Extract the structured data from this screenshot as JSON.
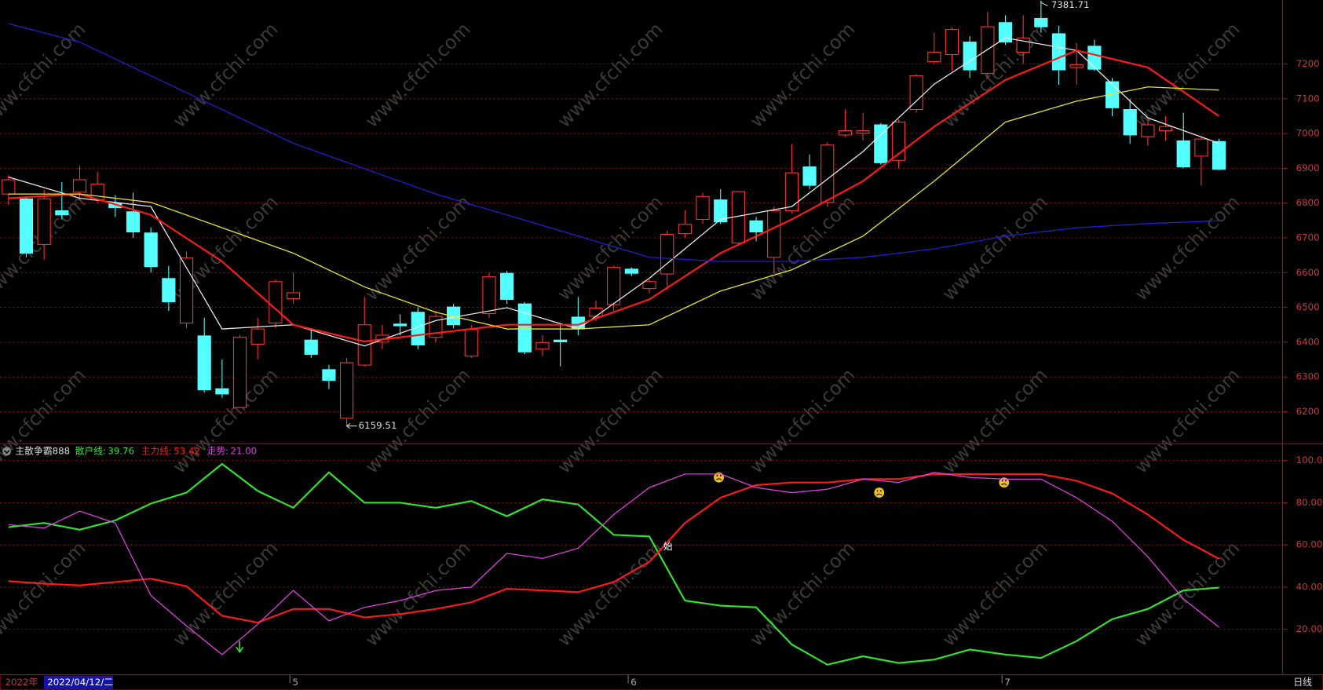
{
  "chart_data": [
    {
      "type": "candlestick",
      "categories": [
        null,
        null,
        null,
        null,
        null,
        null,
        null,
        null,
        null,
        null,
        null,
        null,
        null,
        null,
        null,
        null,
        "5",
        null,
        null,
        null,
        null,
        null,
        null,
        null,
        null,
        null,
        null,
        null,
        null,
        null,
        null,
        null,
        null,
        null,
        null,
        "6",
        null,
        null,
        null,
        null,
        null,
        null,
        null,
        null,
        null,
        null,
        null,
        null,
        null,
        null,
        null,
        null,
        null,
        null,
        null,
        null,
        "7",
        null,
        null,
        null,
        null,
        null,
        null,
        null,
        null,
        null,
        null,
        null,
        null
      ],
      "open": [
        6826,
        6812,
        6681,
        6778,
        6831,
        6809,
        6800,
        6775,
        6714,
        6583,
        6455,
        6418,
        6266,
        6212,
        6394,
        6455,
        6525,
        6406,
        6321,
        6181,
        6334,
        6400,
        6452,
        6486,
        6414,
        6501,
        6360,
        6482,
        6598,
        6510,
        6380,
        6406,
        6472,
        6474,
        6508,
        6610,
        6554,
        6596,
        6712,
        6753,
        6809,
        6685,
        6749,
        6644,
        6778,
        6904,
        6802,
        6996,
        7001,
        7025,
        6923,
        7069,
        7207,
        7227,
        7263,
        7173,
        7319,
        7234,
        7331,
        7287,
        7190,
        7251,
        7149,
        7069,
        6991,
        7008,
        6979,
        6935,
        6977
      ],
      "high": [
        6880,
        6815,
        6838,
        6860,
        6908,
        6890,
        6823,
        6830,
        6730,
        6620,
        6660,
        6470,
        6350,
        6420,
        6470,
        6580,
        6600,
        6440,
        6335,
        6355,
        6530,
        6450,
        6480,
        6500,
        6490,
        6510,
        6450,
        6600,
        6605,
        6515,
        6420,
        6450,
        6530,
        6520,
        6620,
        6615,
        6580,
        6720,
        6780,
        6830,
        6840,
        6835,
        6760,
        6790,
        6970,
        6940,
        6975,
        7070,
        7060,
        7030,
        7040,
        7170,
        7290,
        7305,
        7280,
        7350,
        7340,
        7340,
        7381.71,
        7310,
        7260,
        7270,
        7160,
        7100,
        7040,
        7050,
        7060,
        6990,
        6985
      ],
      "low": [
        6795,
        6644,
        6637,
        6753,
        6810,
        6800,
        6760,
        6700,
        6600,
        6490,
        6440,
        6255,
        6240,
        6210,
        6350,
        6440,
        6510,
        6355,
        6265,
        6159.51,
        6330,
        6380,
        6420,
        6380,
        6400,
        6440,
        6355,
        6470,
        6510,
        6365,
        6360,
        6330,
        6420,
        6460,
        6490,
        6590,
        6540,
        6550,
        6700,
        6740,
        6740,
        6680,
        6690,
        6600,
        6770,
        6840,
        6790,
        6990,
        6980,
        6910,
        6900,
        7060,
        7200,
        7180,
        7160,
        7160,
        7255,
        7200,
        7290,
        7140,
        7140,
        7180,
        7050,
        6970,
        6965,
        6980,
        6900,
        6850,
        6895
      ],
      "close": [
        6867,
        6656,
        6812,
        6766,
        6867,
        6855,
        6787,
        6717,
        6617,
        6516,
        6642,
        6263,
        6251,
        6414,
        6438,
        6574,
        6542,
        6365,
        6290,
        6341,
        6450,
        6420,
        6447,
        6392,
        6474,
        6450,
        6436,
        6588,
        6523,
        6372,
        6399,
        6401,
        6438,
        6498,
        6615,
        6598,
        6574,
        6710,
        6739,
        6819,
        6746,
        6833,
        6717,
        6778,
        6887,
        6851,
        6967,
        7008,
        7008,
        6916,
        7033,
        7166,
        7234,
        7299,
        7183,
        7307,
        7263,
        7275,
        7307,
        7183,
        7198,
        7185,
        7074,
        6996,
        7025,
        7020,
        6904,
        6984,
        6897
      ],
      "up_color": "#ff3232",
      "down_color": "#54ffff",
      "series": [
        {
          "color": "#e8e8e8",
          "x": [
            0,
            4,
            8,
            12,
            16,
            20,
            24,
            28,
            32,
            36,
            40,
            44,
            48,
            52,
            56,
            60,
            64,
            68
          ],
          "values": [
            6875,
            6814,
            6790,
            6438,
            6450,
            6389,
            6462,
            6499,
            6438,
            6584,
            6753,
            6790,
            6948,
            7142,
            7275,
            7239,
            7045,
            6972
          ]
        },
        {
          "color": "#ff1a1a",
          "x": [
            0,
            4,
            8,
            12,
            16,
            20,
            24,
            28,
            32,
            36,
            40,
            44,
            48,
            52,
            56,
            60,
            64,
            68
          ],
          "values": [
            6814,
            6826,
            6766,
            6632,
            6450,
            6402,
            6426,
            6450,
            6450,
            6523,
            6656,
            6753,
            6863,
            7020,
            7154,
            7239,
            7190,
            7050
          ]
        },
        {
          "color": "#e6e620",
          "x": [
            0,
            4,
            8,
            12,
            16,
            20,
            24,
            28,
            32,
            36,
            40,
            44,
            48,
            52,
            56,
            60,
            64,
            68
          ],
          "values": [
            6826,
            6826,
            6802,
            6729,
            6656,
            6559,
            6486,
            6438,
            6438,
            6450,
            6547,
            6608,
            6705,
            6863,
            7033,
            7093,
            7134,
            7125
          ]
        },
        {
          "color": "#2020d0",
          "x": [
            0,
            4,
            8,
            12,
            16,
            20,
            24,
            28,
            32,
            36,
            40,
            44,
            48,
            52,
            56,
            60,
            64,
            68
          ],
          "values": [
            7316,
            7263,
            7166,
            7069,
            6972,
            6899,
            6826,
            6766,
            6705,
            6644,
            6632,
            6632,
            6644,
            6668,
            6705,
            6729,
            6741,
            6749
          ]
        }
      ],
      "ylim": [
        6108,
        7384
      ],
      "yticks": [
        6200,
        6300,
        6400,
        6500,
        6600,
        6700,
        6800,
        6900,
        7000,
        7100,
        7200
      ],
      "grid": true
    },
    {
      "type": "line",
      "title": "主散争霸888",
      "x": [
        0,
        2,
        4,
        6,
        8,
        10,
        12,
        14,
        16,
        18,
        20,
        22,
        24,
        26,
        28,
        30,
        32,
        34,
        36,
        38,
        40,
        42,
        44,
        46,
        48,
        50,
        52,
        54,
        56,
        58,
        60,
        62,
        64,
        66,
        68
      ],
      "series": [
        {
          "name": "散户线:",
          "current_label": "39.76",
          "color": "#2ee62e",
          "values": [
            68.4,
            70.4,
            67.2,
            71.6,
            79.6,
            84.8,
            98.4,
            85.6,
            77.6,
            94.4,
            80,
            80,
            77.6,
            80.8,
            73.6,
            81.6,
            79.2,
            64.8,
            64,
            33.6,
            31.2,
            30.4,
            12.8,
            3.2,
            7.2,
            4,
            5.6,
            10.4,
            8,
            6.4,
            14.4,
            24.8,
            29.6,
            38.4,
            39.76
          ]
        },
        {
          "name": "主力线:",
          "current_label": "53.42",
          "color": "#ff1a1a",
          "values": [
            42.8,
            41.6,
            40.8,
            42.4,
            44,
            40.4,
            26.4,
            23.2,
            29.6,
            29.6,
            25.6,
            27.2,
            29.6,
            32.8,
            39.2,
            38.4,
            37.6,
            42.4,
            52,
            70.4,
            82.4,
            88.4,
            89.6,
            89.6,
            91.2,
            91.2,
            93.6,
            93.6,
            93.6,
            93.6,
            90.4,
            84.4,
            74.4,
            62.4,
            53.42
          ]
        },
        {
          "name": "走势:",
          "current_label": "21.00",
          "color": "#e040e0",
          "values": [
            69.6,
            68,
            76,
            70.4,
            36,
            21.6,
            8,
            22.4,
            38.4,
            24,
            30.4,
            33.6,
            38.4,
            40,
            56,
            53.6,
            58.4,
            74.4,
            87.2,
            93.6,
            93.6,
            87.2,
            84.8,
            86.4,
            91.2,
            89.6,
            94.4,
            92,
            91.2,
            91.2,
            82.4,
            71.2,
            54.4,
            34.4,
            21
          ]
        }
      ],
      "annotation": "始",
      "ylim": [
        -1.6,
        108
      ],
      "yticks": [
        {
          "value": 20,
          "label": "20.00"
        },
        {
          "value": 40,
          "label": "40.00"
        },
        {
          "value": 60,
          "label": "60.00"
        },
        {
          "value": 80,
          "label": "80.00"
        },
        {
          "value": 100,
          "label": "100.0"
        }
      ],
      "grid": true
    }
  ],
  "footer": {
    "year": "2022年",
    "date": "2022/04/12/二",
    "period": "日线"
  },
  "watermark": "www.cfchi.com"
}
